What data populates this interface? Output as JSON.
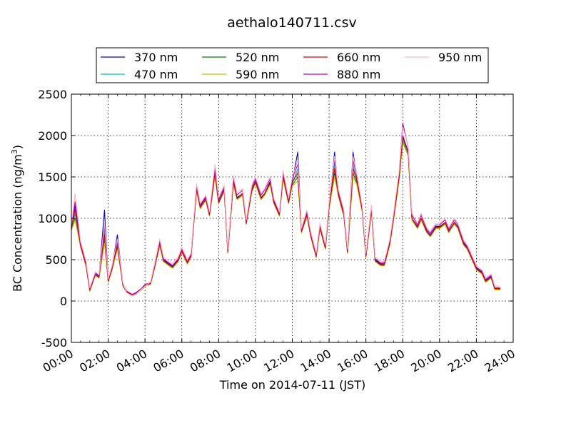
{
  "chart_data": {
    "type": "line",
    "title": "aethalo140711.csv",
    "xlabel": "Time on 2014-07-11 (JST)",
    "ylabel_base": "BC Concentration (ng/m",
    "ylabel_sup": "3",
    "ylabel_end": ")",
    "xlim": [
      "00:00",
      "24:00"
    ],
    "ylim": [
      -500,
      2500
    ],
    "xticks": [
      "00:00",
      "02:00",
      "04:00",
      "06:00",
      "08:00",
      "10:00",
      "12:00",
      "14:00",
      "16:00",
      "18:00",
      "20:00",
      "22:00",
      "24:00"
    ],
    "yticks": [
      -500,
      0,
      500,
      1000,
      1500,
      2000,
      2500
    ],
    "grid": true,
    "legend_placement": "top-center, above plot, 4 columns",
    "x_hours": [
      0.0,
      0.2,
      0.5,
      0.8,
      1.0,
      1.3,
      1.5,
      1.8,
      2.0,
      2.2,
      2.5,
      2.8,
      3.0,
      3.3,
      3.5,
      3.8,
      4.0,
      4.3,
      4.5,
      4.8,
      5.0,
      5.3,
      5.5,
      5.8,
      6.0,
      6.3,
      6.5,
      6.8,
      7.0,
      7.3,
      7.5,
      7.8,
      8.0,
      8.3,
      8.5,
      8.8,
      9.0,
      9.3,
      9.5,
      9.8,
      10.0,
      10.3,
      10.5,
      10.8,
      11.0,
      11.3,
      11.5,
      11.8,
      12.0,
      12.3,
      12.5,
      12.8,
      13.0,
      13.3,
      13.5,
      13.8,
      14.0,
      14.3,
      14.5,
      14.8,
      15.0,
      15.3,
      15.5,
      15.8,
      16.0,
      16.3,
      16.5,
      16.8,
      17.0,
      17.3,
      17.5,
      17.8,
      18.0,
      18.3,
      18.5,
      18.8,
      19.0,
      19.3,
      19.5,
      19.8,
      20.0,
      20.3,
      20.5,
      20.8,
      21.0,
      21.3,
      21.5,
      21.8,
      22.0,
      22.3,
      22.5,
      22.8,
      23.0,
      23.3,
      23.5,
      23.8,
      24.0
    ],
    "series": [
      {
        "name": "370 nm",
        "color": "#0000cc",
        "values": [
          900,
          1150,
          700,
          450,
          150,
          350,
          300,
          1100,
          250,
          400,
          800,
          200,
          120,
          80,
          100,
          150,
          200,
          220,
          400,
          700,
          500,
          450,
          420,
          500,
          620,
          470,
          550,
          1380,
          1150,
          1250,
          1050,
          1550,
          1200,
          1350,
          600,
          1450,
          1250,
          1300,
          950,
          1350,
          1450,
          1250,
          1300,
          1450,
          1200,
          1050,
          1550,
          1200,
          1450,
          1800,
          850,
          1050,
          800,
          550,
          900,
          650,
          1150,
          1800,
          1300,
          1050,
          600,
          1800,
          1500,
          1100,
          550,
          1100,
          500,
          450,
          450,
          700,
          1000,
          1500,
          2000,
          1800,
          1000,
          900,
          1000,
          850,
          800,
          900,
          900,
          950,
          850,
          950,
          900,
          700,
          650,
          500,
          400,
          350,
          250,
          300,
          150,
          150
        ]
      },
      {
        "name": "470 nm",
        "color": "#00bfbf",
        "values": [
          880,
          1050,
          680,
          430,
          130,
          320,
          290,
          850,
          240,
          380,
          700,
          190,
          110,
          75,
          95,
          140,
          190,
          210,
          390,
          680,
          490,
          440,
          410,
          490,
          600,
          460,
          540,
          1360,
          1130,
          1230,
          1040,
          1530,
          1190,
          1340,
          590,
          1430,
          1240,
          1290,
          940,
          1330,
          1430,
          1240,
          1290,
          1420,
          1190,
          1040,
          1500,
          1190,
          1420,
          1600,
          840,
          1040,
          790,
          540,
          880,
          640,
          1130,
          1650,
          1280,
          1040,
          590,
          1650,
          1450,
          1090,
          540,
          1090,
          490,
          440,
          440,
          690,
          990,
          1480,
          1950,
          1780,
          990,
          890,
          990,
          840,
          790,
          890,
          890,
          940,
          840,
          940,
          890,
          690,
          640,
          490,
          390,
          340,
          240,
          290,
          145,
          145
        ]
      },
      {
        "name": "520 nm",
        "color": "#007f00",
        "values": [
          860,
          1000,
          660,
          420,
          120,
          310,
          280,
          750,
          230,
          370,
          650,
          185,
          105,
          72,
          92,
          135,
          185,
          205,
          380,
          670,
          480,
          430,
          400,
          480,
          590,
          450,
          530,
          1340,
          1120,
          1220,
          1030,
          1510,
          1180,
          1330,
          580,
          1420,
          1230,
          1280,
          930,
          1320,
          1420,
          1230,
          1280,
          1410,
          1180,
          1030,
          1480,
          1180,
          1400,
          1500,
          830,
          1030,
          780,
          530,
          870,
          630,
          1120,
          1550,
          1270,
          1030,
          580,
          1550,
          1420,
          1080,
          530,
          1080,
          480,
          430,
          430,
          680,
          980,
          1460,
          1920,
          1760,
          980,
          880,
          980,
          830,
          780,
          880,
          880,
          930,
          830,
          930,
          880,
          680,
          630,
          480,
          380,
          330,
          230,
          280,
          140,
          140
        ]
      },
      {
        "name": "590 nm",
        "color": "#bfbf00",
        "values": [
          850,
          980,
          650,
          410,
          115,
          305,
          275,
          700,
          225,
          365,
          620,
          180,
          100,
          70,
          90,
          130,
          180,
          200,
          375,
          665,
          475,
          425,
          395,
          475,
          585,
          445,
          525,
          1330,
          1115,
          1215,
          1025,
          1500,
          1175,
          1325,
          575,
          1415,
          1225,
          1275,
          925,
          1315,
          1415,
          1225,
          1275,
          1405,
          1175,
          1025,
          1470,
          1175,
          1390,
          1450,
          825,
          1025,
          775,
          525,
          865,
          625,
          1115,
          1500,
          1265,
          1025,
          575,
          1500,
          1410,
          1075,
          525,
          1075,
          475,
          425,
          425,
          675,
          975,
          1455,
          1910,
          1755,
          975,
          875,
          975,
          825,
          775,
          875,
          875,
          925,
          825,
          925,
          875,
          675,
          625,
          475,
          375,
          325,
          225,
          275,
          135,
          135
        ]
      },
      {
        "name": "660 nm",
        "color": "#dd0000",
        "values": [
          870,
          1100,
          670,
          430,
          130,
          320,
          290,
          800,
          240,
          380,
          680,
          190,
          110,
          75,
          95,
          140,
          190,
          210,
          390,
          690,
          490,
          440,
          410,
          490,
          600,
          460,
          540,
          1350,
          1130,
          1230,
          1040,
          1540,
          1190,
          1340,
          590,
          1440,
          1240,
          1300,
          940,
          1340,
          1440,
          1240,
          1300,
          1430,
          1190,
          1040,
          1500,
          1190,
          1430,
          1550,
          840,
          1040,
          790,
          540,
          890,
          640,
          1140,
          1600,
          1290,
          1040,
          590,
          1600,
          1460,
          1100,
          540,
          1100,
          490,
          440,
          440,
          700,
          1000,
          1490,
          1980,
          1790,
          1000,
          890,
          1000,
          840,
          790,
          890,
          890,
          950,
          840,
          950,
          890,
          690,
          640,
          490,
          390,
          340,
          240,
          290,
          150,
          150
        ]
      },
      {
        "name": "880 nm",
        "color": "#bf00bf",
        "values": [
          890,
          1200,
          690,
          450,
          140,
          330,
          300,
          900,
          250,
          400,
          720,
          200,
          120,
          80,
          100,
          150,
          200,
          220,
          410,
          720,
          510,
          460,
          430,
          510,
          620,
          480,
          560,
          1400,
          1160,
          1260,
          1060,
          1600,
          1220,
          1380,
          610,
          1500,
          1280,
          1340,
          960,
          1380,
          1480,
          1280,
          1340,
          1480,
          1220,
          1060,
          1560,
          1220,
          1480,
          1650,
          860,
          1080,
          820,
          560,
          920,
          660,
          1180,
          1700,
          1330,
          1080,
          610,
          1700,
          1520,
          1130,
          560,
          1140,
          510,
          460,
          460,
          730,
          1040,
          1550,
          2150,
          1850,
          1040,
          920,
          1040,
          870,
          820,
          920,
          920,
          980,
          870,
          980,
          920,
          720,
          660,
          510,
          410,
          360,
          260,
          310,
          160,
          160
        ]
      },
      {
        "name": "950 nm",
        "color": "#ffb6c1",
        "values": [
          920,
          1300,
          720,
          480,
          160,
          350,
          320,
          950,
          270,
          420,
          750,
          220,
          100,
          60,
          80,
          140,
          180,
          230,
          430,
          750,
          530,
          480,
          450,
          530,
          650,
          500,
          580,
          1420,
          1180,
          1280,
          1080,
          1650,
          1250,
          1400,
          630,
          1520,
          1300,
          1360,
          980,
          1400,
          1500,
          1300,
          1360,
          1500,
          1240,
          1080,
          1580,
          1240,
          1500,
          1700,
          880,
          1100,
          840,
          580,
          940,
          680,
          1200,
          1750,
          1350,
          1100,
          630,
          1750,
          1540,
          1150,
          580,
          1160,
          530,
          480,
          480,
          750,
          1060,
          1570,
          2100,
          1870,
          1060,
          940,
          1060,
          890,
          840,
          940,
          940,
          1000,
          890,
          1000,
          940,
          740,
          680,
          530,
          430,
          380,
          280,
          330,
          180,
          180
        ]
      }
    ]
  }
}
